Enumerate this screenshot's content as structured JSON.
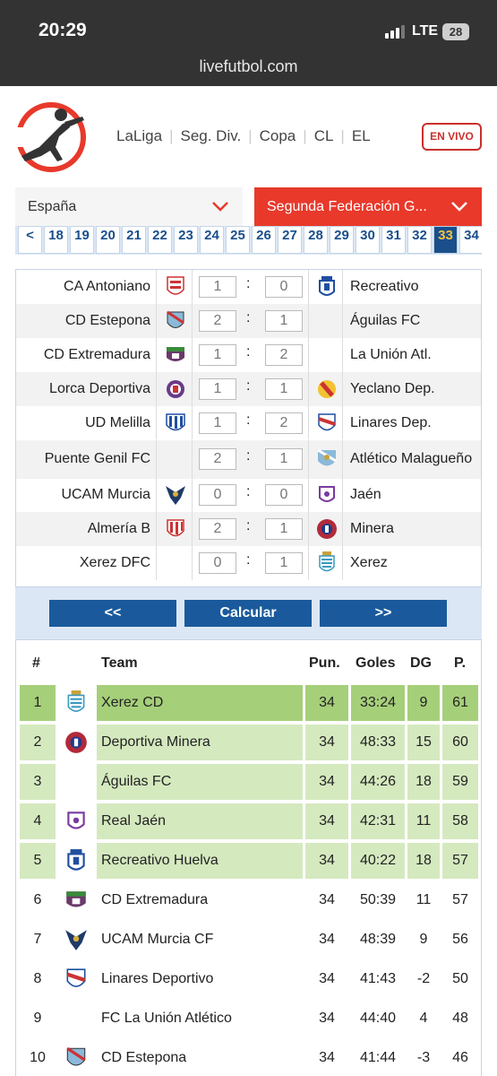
{
  "status_bar": {
    "time": "20:29",
    "network": "LTE",
    "battery": "28"
  },
  "browser": {
    "url": "livefutbol.com"
  },
  "nav": {
    "items": [
      "LaLiga",
      "Seg. Div.",
      "Copa",
      "CL",
      "EL"
    ],
    "live_label": "EN VIVO"
  },
  "selectors": {
    "country": "España",
    "league": "Segunda Federación G..."
  },
  "rounds": {
    "prev": "<",
    "items": [
      "18",
      "19",
      "20",
      "21",
      "22",
      "23",
      "24",
      "25",
      "26",
      "27",
      "28",
      "29",
      "30",
      "31",
      "32",
      "33",
      "34"
    ],
    "active": "33"
  },
  "matches": [
    {
      "home": "CA Antoniano",
      "home_goals": "1",
      "away_goals": "0",
      "away": "Recreativo",
      "home_crest": "granada-crest-icon",
      "away_crest": "recreativo-crest-icon"
    },
    {
      "home": "CD Estepona",
      "home_goals": "2",
      "away_goals": "1",
      "away": "Águilas FC",
      "home_crest": "estepona-crest-icon",
      "away_crest": ""
    },
    {
      "home": "CD Extremadura",
      "home_goals": "1",
      "away_goals": "2",
      "away": "La Unión Atl.",
      "home_crest": "extremadura-crest-icon",
      "away_crest": ""
    },
    {
      "home": "Lorca Deportiva",
      "home_goals": "1",
      "away_goals": "1",
      "away": "Yeclano Dep.",
      "home_crest": "lorca-crest-icon",
      "away_crest": "yeclano-crest-icon"
    },
    {
      "home": "UD Melilla",
      "home_goals": "1",
      "away_goals": "2",
      "away": "Linares Dep.",
      "home_crest": "melilla-crest-icon",
      "away_crest": "linares-crest-icon"
    },
    {
      "home": "Puente Genil FC",
      "home_goals": "2",
      "away_goals": "1",
      "away": "Atlético Malagueño",
      "home_crest": "",
      "away_crest": "malaga-crest-icon"
    },
    {
      "home": "UCAM Murcia",
      "home_goals": "0",
      "away_goals": "0",
      "away": "Jaén",
      "home_crest": "ucam-crest-icon",
      "away_crest": "jaen-crest-icon"
    },
    {
      "home": "Almería B",
      "home_goals": "2",
      "away_goals": "1",
      "away": "Minera",
      "home_crest": "almeria-crest-icon",
      "away_crest": "minera-crest-icon"
    },
    {
      "home": "Xerez DFC",
      "home_goals": "0",
      "away_goals": "1",
      "away": "Xerez",
      "home_crest": "",
      "away_crest": "xerez-crest-icon"
    }
  ],
  "buttons": {
    "prev": "<<",
    "calc": "Calcular",
    "next": ">>"
  },
  "standings": {
    "headers": {
      "pos": "#",
      "team": "Team",
      "pts": "Pun.",
      "goals": "Goles",
      "gd": "DG",
      "p": "P."
    },
    "rows": [
      {
        "pos": "1",
        "team": "Xerez CD",
        "played": "34",
        "goals": "33:24",
        "gd": "9",
        "points": "61",
        "crest": "xerez-crest-icon"
      },
      {
        "pos": "2",
        "team": "Deportiva Minera",
        "played": "34",
        "goals": "48:33",
        "gd": "15",
        "points": "60",
        "crest": "minera-crest-icon"
      },
      {
        "pos": "3",
        "team": "Águilas FC",
        "played": "34",
        "goals": "44:26",
        "gd": "18",
        "points": "59",
        "crest": ""
      },
      {
        "pos": "4",
        "team": "Real Jaén",
        "played": "34",
        "goals": "42:31",
        "gd": "11",
        "points": "58",
        "crest": "jaen-crest-icon"
      },
      {
        "pos": "5",
        "team": "Recreativo Huelva",
        "played": "34",
        "goals": "40:22",
        "gd": "18",
        "points": "57",
        "crest": "recreativo-crest-icon"
      },
      {
        "pos": "6",
        "team": "CD Extremadura",
        "played": "34",
        "goals": "50:39",
        "gd": "11",
        "points": "57",
        "crest": "extremadura-crest-icon"
      },
      {
        "pos": "7",
        "team": "UCAM Murcia CF",
        "played": "34",
        "goals": "48:39",
        "gd": "9",
        "points": "56",
        "crest": "ucam-crest-icon"
      },
      {
        "pos": "8",
        "team": "Linares Deportivo",
        "played": "34",
        "goals": "41:43",
        "gd": "-2",
        "points": "50",
        "crest": "linares-crest-icon"
      },
      {
        "pos": "9",
        "team": "FC La Unión Atlético",
        "played": "34",
        "goals": "44:40",
        "gd": "4",
        "points": "48",
        "crest": ""
      },
      {
        "pos": "10",
        "team": "CD Estepona",
        "played": "34",
        "goals": "41:44",
        "gd": "-3",
        "points": "46",
        "crest": "estepona-crest-icon"
      }
    ]
  },
  "colors": {
    "accent_red": "#e8392b",
    "dark_blue": "#1a5a9c",
    "leader_green": "#a6cf7a",
    "promo_green": "#d5e9bf"
  }
}
